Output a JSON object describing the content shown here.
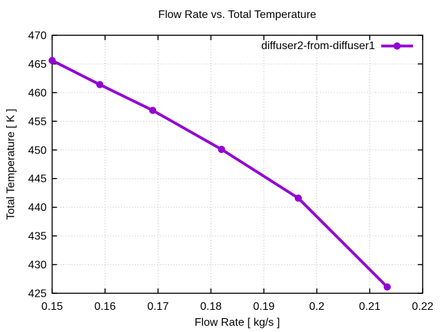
{
  "title": "Flow Rate vs. Total Temperature",
  "axes": {
    "x_label": "Flow Rate [ kg/s ]",
    "y_label": "Total Temperature [ K ]"
  },
  "legend": {
    "label": "diffuser2-from-diffuser1"
  },
  "colors": {
    "series": "#9400d3",
    "grid": "#b5b5b5",
    "axis": "#000000",
    "text": "#000000",
    "background": "#ffffff"
  },
  "chart_data": {
    "type": "line",
    "title": "Flow Rate vs. Total Temperature",
    "xlabel": "Flow Rate [ kg/s ]",
    "ylabel": "Total Temperature [ K ]",
    "xlim": [
      0.15,
      0.22
    ],
    "ylim": [
      425,
      470
    ],
    "x_tick_labels": [
      "0.15",
      "0.16",
      "0.17",
      "0.18",
      "0.19",
      "0.2",
      "0.21",
      "0.22"
    ],
    "y_tick_labels": [
      "425",
      "430",
      "435",
      "440",
      "445",
      "450",
      "455",
      "460",
      "465",
      "470"
    ],
    "grid": true,
    "legend_position": "top-right-inside",
    "series": [
      {
        "name": "diffuser2-from-diffuser1",
        "color": "#9400d3",
        "marker": "filled-circle",
        "x": [
          0.15,
          0.159,
          0.169,
          0.182,
          0.1965,
          0.2133
        ],
        "y": [
          465.6,
          461.4,
          456.9,
          450.1,
          441.6,
          426.1
        ]
      }
    ]
  }
}
